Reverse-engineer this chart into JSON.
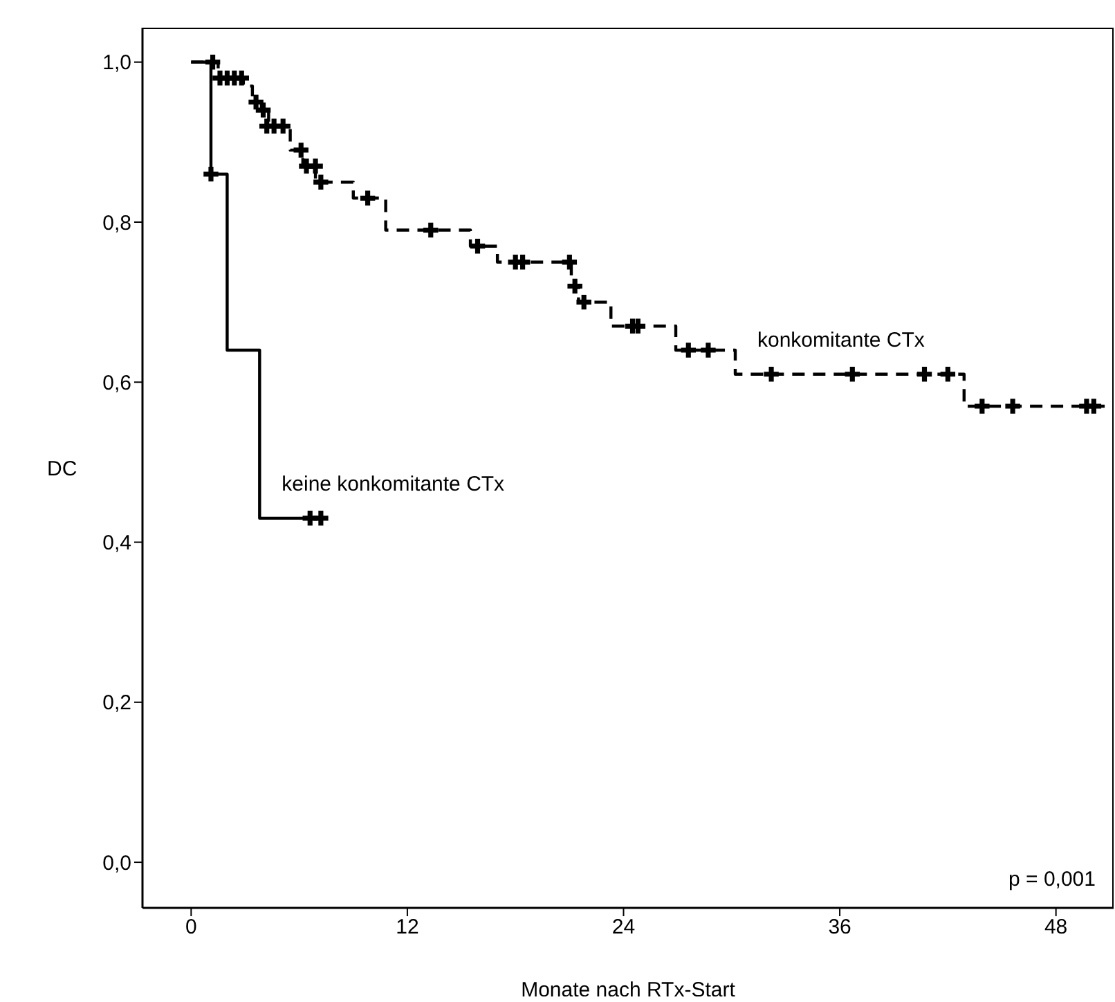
{
  "chart_data": {
    "type": "step",
    "xlabel": "Monate nach RTx-Start",
    "ylabel": "DC",
    "xlim": [
      -2.7,
      51.2
    ],
    "xticks": [
      0,
      12,
      24,
      36,
      48
    ],
    "ylim": [
      -0.057,
      1.043
    ],
    "yticks": [
      {
        "value": 0,
        "label": "0,0"
      },
      {
        "value": 0.2,
        "label": "0,2"
      },
      {
        "value": 0.4,
        "label": "0,4"
      },
      {
        "value": 0.6,
        "label": "0,6"
      },
      {
        "value": 0.8,
        "label": "0,8"
      },
      {
        "value": 1,
        "label": "1,0"
      }
    ],
    "grid": false,
    "legend": false,
    "annotations": [
      "p = 0,001"
    ],
    "series": [
      {
        "name": "keine konkomitante CTx",
        "color": "#000000",
        "line_style": "solid",
        "marker": "none",
        "x": [
          0,
          1.1,
          2.0,
          3.8,
          7.2
        ],
        "values": [
          1,
          0.86,
          0.64,
          0.43,
          0.43
        ]
      },
      {
        "name": "konkomitante CTx",
        "color": "#000000",
        "line_style": "dashed",
        "marker": "none",
        "x": [
          0,
          1.5,
          2.9,
          3.4,
          3.9,
          4.3,
          5.5,
          6.2,
          6.9,
          9.0,
          10.8,
          15.5,
          17.0,
          21.1,
          21.5,
          23.3,
          26.9,
          30.2,
          42.9,
          51.2
        ],
        "values": [
          1,
          0.98,
          0.97,
          0.95,
          0.94,
          0.92,
          0.89,
          0.87,
          0.85,
          0.83,
          0.79,
          0.77,
          0.75,
          0.72,
          0.7,
          0.67,
          0.64,
          0.61,
          0.57,
          0.57
        ]
      },
      {
        "type": "scatter",
        "color": "#000000",
        "marker": "cross",
        "x": [
          1.1,
          6.6,
          7.2
        ],
        "values": [
          0.86,
          0.43,
          0.43
        ]
      },
      {
        "type": "scatter",
        "color": "#000000",
        "marker": "cross",
        "x": [
          1.2,
          1.6,
          2.0,
          2.4,
          2.8,
          3.6,
          4.0,
          4.2,
          4.6,
          5.1,
          6.1,
          6.4,
          6.9,
          7.2,
          9.8,
          13.3,
          15.9,
          18.0,
          18.4,
          21.0,
          21.3,
          21.8,
          24.5,
          24.8,
          27.6,
          28.7,
          32.2,
          36.7,
          40.7,
          42.0,
          43.9,
          45.6,
          49.7,
          50.1
        ],
        "values": [
          1,
          0.98,
          0.98,
          0.98,
          0.98,
          0.95,
          0.94,
          0.92,
          0.92,
          0.92,
          0.89,
          0.87,
          0.87,
          0.85,
          0.83,
          0.79,
          0.77,
          0.75,
          0.75,
          0.75,
          0.72,
          0.7,
          0.67,
          0.67,
          0.64,
          0.64,
          0.61,
          0.61,
          0.61,
          0.61,
          0.57,
          0.57,
          0.57,
          0.57
        ]
      }
    ]
  }
}
